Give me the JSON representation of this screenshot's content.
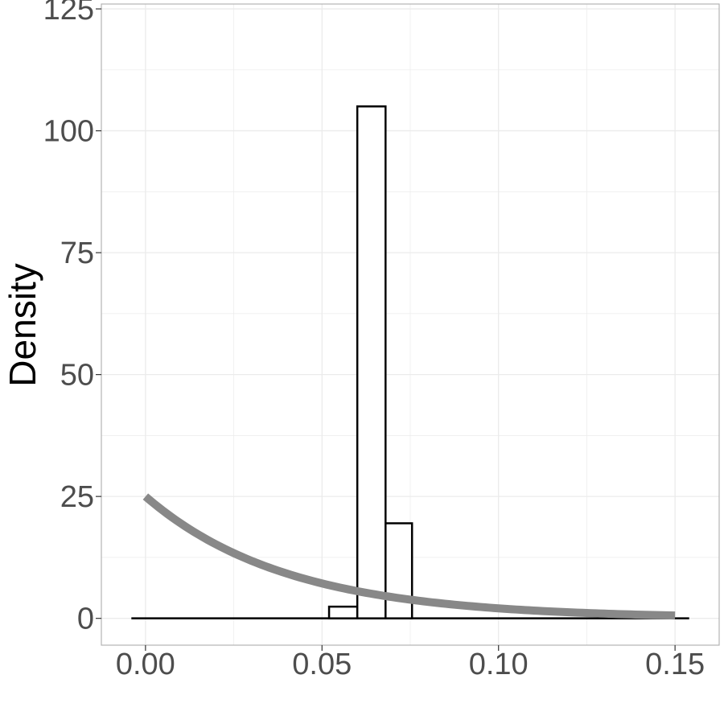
{
  "chart_data": {
    "type": "histogram",
    "title": "",
    "xlabel": "",
    "ylabel": "Density",
    "xlim": [
      -0.0125,
      0.1625
    ],
    "ylim": [
      -5.5,
      126
    ],
    "grid": true,
    "legend": "none",
    "x_ticks": [
      {
        "value": 0.0,
        "label": "0.00"
      },
      {
        "value": 0.05,
        "label": "0.05"
      },
      {
        "value": 0.1,
        "label": "0.10"
      },
      {
        "value": 0.15,
        "label": "0.15"
      }
    ],
    "y_ticks": [
      {
        "value": 0,
        "label": "0"
      },
      {
        "value": 25,
        "label": "25"
      },
      {
        "value": 50,
        "label": "50"
      },
      {
        "value": 75,
        "label": "75"
      },
      {
        "value": 100,
        "label": "100"
      },
      {
        "value": 125,
        "label": "125"
      }
    ],
    "histogram": {
      "range": [
        -0.004,
        0.154
      ],
      "bins": [
        {
          "x0": 0.052,
          "x1": 0.06,
          "density": 2.4
        },
        {
          "x0": 0.06,
          "x1": 0.068,
          "density": 105
        },
        {
          "x0": 0.068,
          "x1": 0.0755,
          "density": 19.5
        }
      ]
    },
    "curve": {
      "type": "exponential-density",
      "rate": 25,
      "x_range": [
        0.0,
        0.15
      ],
      "color": "#888888"
    },
    "colors": {
      "bar_outline": "#000000",
      "bar_fill": "#ffffff",
      "grid": "#ebebeb",
      "panel_border": "#b3b3b3"
    }
  }
}
